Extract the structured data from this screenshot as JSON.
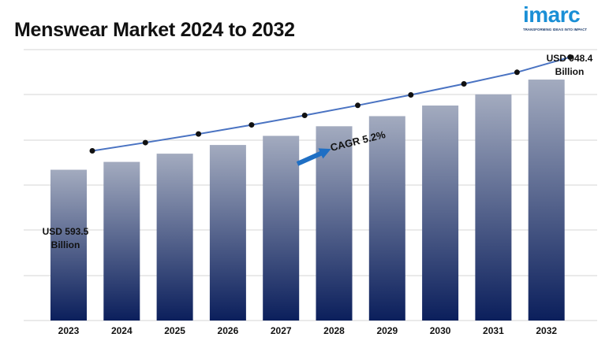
{
  "header": {
    "title": "Menswear Market 2024 to 2032"
  },
  "logo": {
    "wordmark": "imarc",
    "tagline": "TRANSFORMING IDEAS INTO IMPACT"
  },
  "annotations": {
    "start_value_line1": "USD 593.5",
    "start_value_line2": "Billion",
    "end_value_line1": "USD 948.4",
    "end_value_line2": "Billion",
    "cagr": "CAGR 5.2%"
  },
  "colors": {
    "bar_top": "#a3abbf",
    "bar_bottom": "#0b1f5c",
    "line": "#4a73c2",
    "marker": "#111111",
    "arrow": "#1f6fc4",
    "gridline": "#d6d6d6",
    "logo": "#1a8fd6"
  },
  "chart_data": {
    "type": "bar",
    "title": "Menswear Market 2024 to 2032",
    "xlabel": "",
    "ylabel": "",
    "unit": "USD Billion",
    "grid": true,
    "categories": [
      "2023",
      "2024",
      "2025",
      "2026",
      "2027",
      "2028",
      "2029",
      "2030",
      "2031",
      "2032"
    ],
    "values": [
      593.5,
      624.4,
      656.8,
      691.0,
      726.9,
      764.7,
      804.5,
      846.3,
      890.3,
      948.4
    ],
    "trend_line": true,
    "ylim": [
      0,
      1000
    ]
  }
}
